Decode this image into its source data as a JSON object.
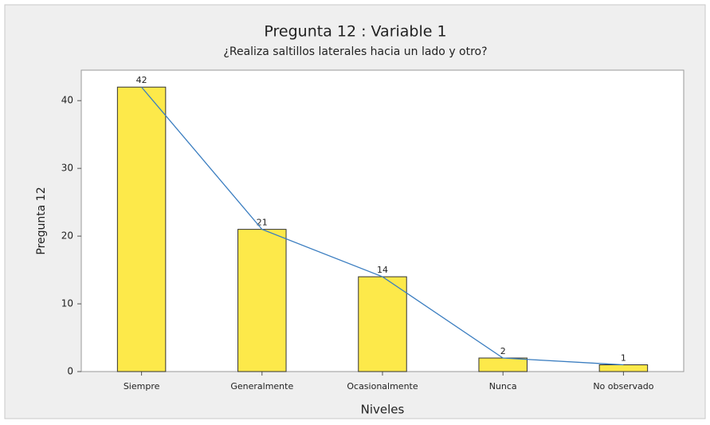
{
  "chart_data": {
    "type": "bar",
    "title": "Pregunta 12 : Variable 1",
    "subtitle": "¿Realiza saltillos laterales hacia un lado y otro?",
    "x_label": "Niveles",
    "y_label": "Pregunta 12",
    "categories": [
      "Siempre",
      "Generalmente",
      "Ocasionalmente",
      "Nunca",
      "No observado"
    ],
    "values": [
      42,
      21,
      14,
      2,
      1
    ],
    "color": "#fde94a",
    "line_color": "#3a7dc0",
    "ylim": [
      0,
      44.5
    ],
    "yticks": [
      0,
      10,
      20,
      30,
      40
    ]
  }
}
